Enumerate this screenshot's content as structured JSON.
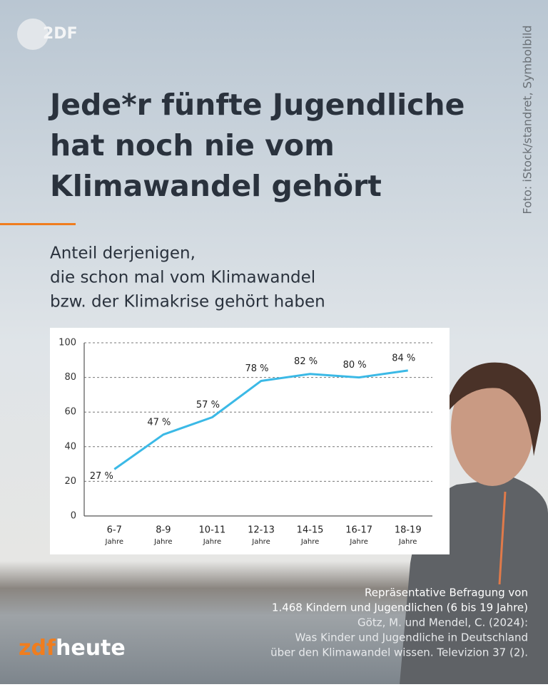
{
  "logo_top": "2DF",
  "photo_credit": "Foto: iStock/standret, Symbolbild",
  "headline": [
    "Jede*r fünfte Jugendliche",
    "hat noch nie vom",
    "Klimawandel gehört"
  ],
  "subtitle": [
    "Anteil derjenigen,",
    "die schon mal vom Klimawandel",
    "bzw. der Klimakrise gehört haben"
  ],
  "source": [
    "Repräsentative Befragung von",
    "1.468 Kindern und Jugendlichen (6 bis 19 Jahre)",
    "Götz, M. und Mendel, C. (2024):",
    "Was Kinder und Jugendliche in Deutschland",
    "über den Klimawandel wissen. Televizion 37 (2)."
  ],
  "brand": [
    "zdf",
    "heute"
  ],
  "chart_data": {
    "type": "line",
    "categories": [
      [
        "6-7",
        "Jahre"
      ],
      [
        "8-9",
        "Jahre"
      ],
      [
        "10-11",
        "Jahre"
      ],
      [
        "12-13",
        "Jahre"
      ],
      [
        "14-15",
        "Jahre"
      ],
      [
        "16-17",
        "Jahre"
      ],
      [
        "18-19",
        "Jahre"
      ]
    ],
    "values": [
      27,
      47,
      57,
      78,
      82,
      80,
      84
    ],
    "value_labels": [
      "27 %",
      "47 %",
      "57 %",
      "78 %",
      "82 %",
      "80 %",
      "84 %"
    ],
    "color": "#3bb9e6",
    "ylim": [
      0,
      100
    ],
    "yticks": [
      0,
      20,
      40,
      60,
      80,
      100
    ],
    "grid": true
  }
}
